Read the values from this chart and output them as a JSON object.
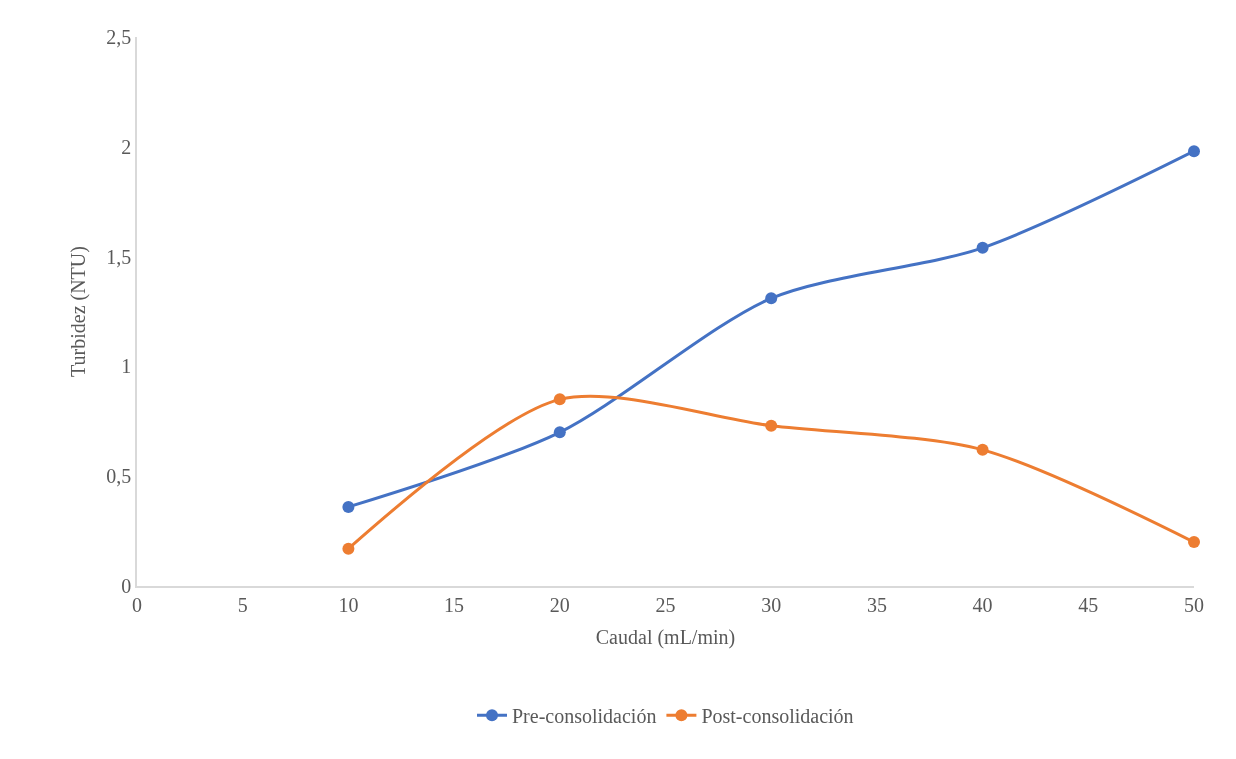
{
  "chart_data": {
    "type": "line",
    "xlabel": "Caudal (mL/min)",
    "ylabel": "Turbidez (NTU)",
    "x": [
      10,
      20,
      30,
      40,
      50
    ],
    "series": [
      {
        "name": "Pre-consolidación",
        "color": "#4472c4",
        "values": [
          0.36,
          0.7,
          1.31,
          1.54,
          1.98
        ]
      },
      {
        "name": "Post-consolidación",
        "color": "#ed7d31",
        "values": [
          0.17,
          0.85,
          0.73,
          0.62,
          0.2
        ]
      }
    ],
    "xlim": [
      0,
      50
    ],
    "xticks": [
      0,
      5,
      10,
      15,
      20,
      25,
      30,
      35,
      40,
      45,
      50
    ],
    "ylim": [
      0,
      2.5
    ],
    "yticks": [
      0,
      {
        "value": 0.5,
        "label": "0,5"
      },
      1,
      {
        "value": 1.5,
        "label": "1,5"
      },
      2,
      {
        "value": 2.5,
        "label": "2,5"
      }
    ],
    "grid": false,
    "legend": "bottom",
    "marker": "circle",
    "line_style": "solid"
  }
}
